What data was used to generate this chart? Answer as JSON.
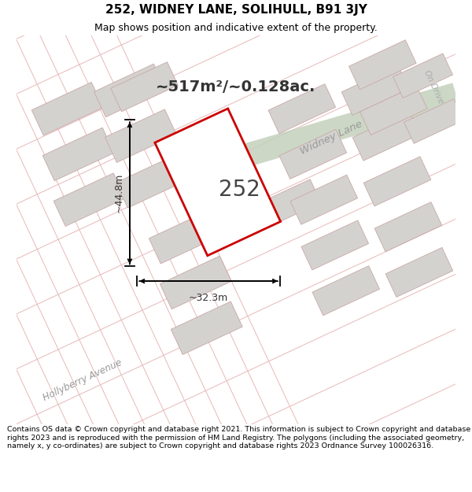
{
  "title": "252, WIDNEY LANE, SOLIHULL, B91 3JY",
  "subtitle": "Map shows position and indicative extent of the property.",
  "area_text": "~517m²/~0.128ac.",
  "label_252": "252",
  "dim_width": "~32.3m",
  "dim_height": "~44.8m",
  "road_label": "Widney Lane",
  "road2_label": "Hollyberry Avenue",
  "road3_label": "On Drive",
  "footer": "Contains OS data © Crown copyright and database right 2021. This information is subject to Crown copyright and database rights 2023 and is reproduced with the permission of HM Land Registry. The polygons (including the associated geometry, namely x, y co-ordinates) are subject to Crown copyright and database rights 2023 Ordnance Survey 100026316.",
  "bg_color": "#eceae6",
  "plot_outline_color": "#cc0000",
  "plot_fill_color": "#ffffff",
  "block_color": "#d4d2ce",
  "block_outline": "#c8a8a8",
  "green_strip_color": "#c4d0bc",
  "title_fontsize": 11,
  "subtitle_fontsize": 9,
  "footer_fontsize": 6.8
}
